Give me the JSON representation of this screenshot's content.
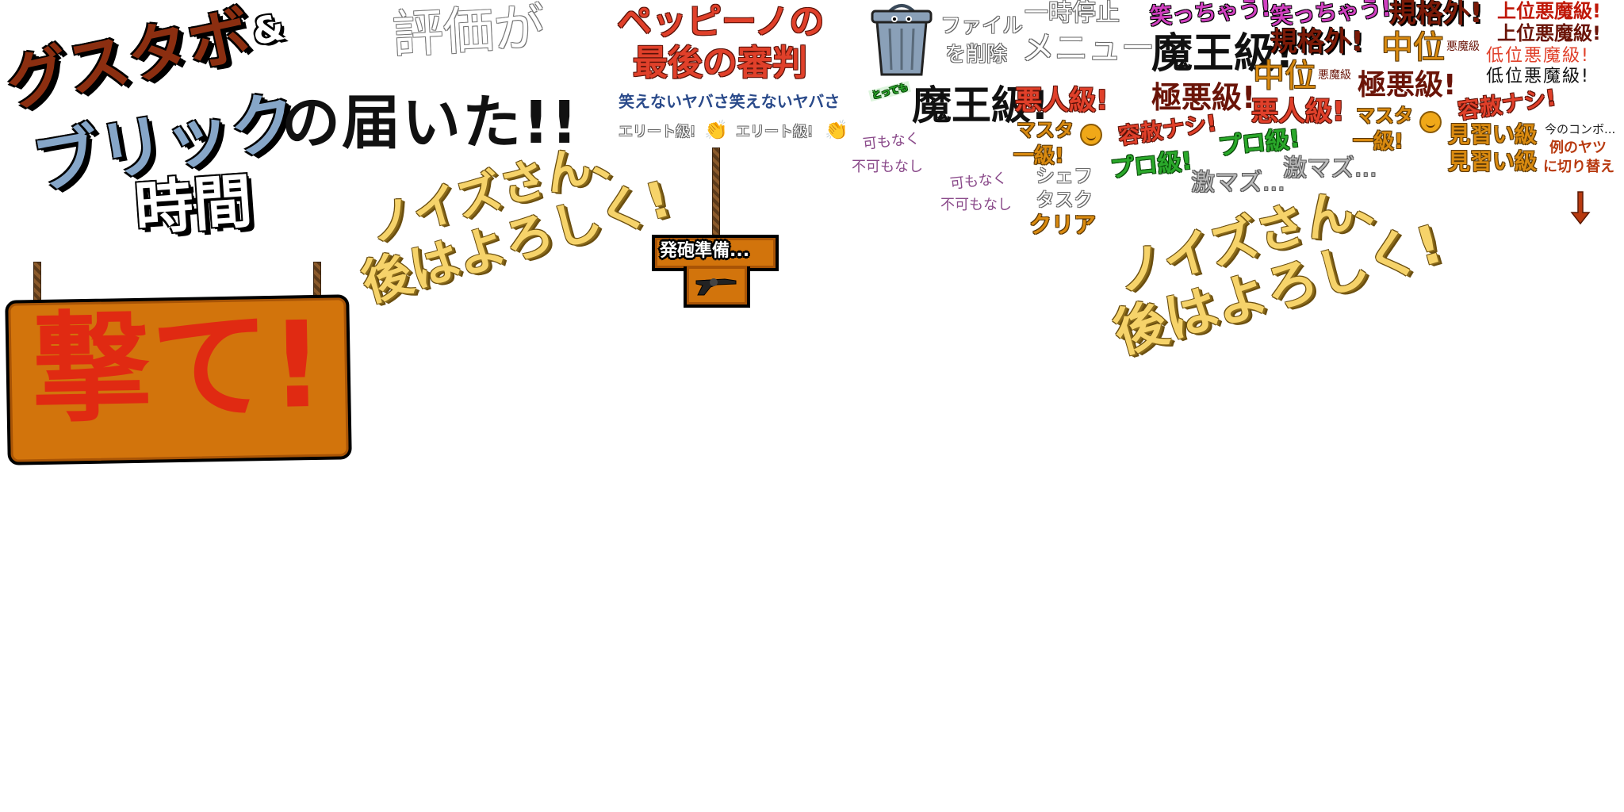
{
  "title": {
    "gusutabo": "グスタボ",
    "amp": "&",
    "brick": "ブリック",
    "time": "時間",
    "delivered": "の届いた!!"
  },
  "hyouka": "評価が",
  "peppino": {
    "line1": "ペッピーノの",
    "line2": "最後の審判"
  },
  "cantlaugh": "笑えないヤバさ笑えないヤバさ",
  "elite": [
    "エリート級!",
    "エリート級!"
  ],
  "fire_sign": {
    "label": "発砲準備...",
    "icon": "revolver-icon"
  },
  "shoot_sign": "撃て!",
  "noise1": {
    "line1": "ノイズさん、",
    "line2": "後はよろしく!"
  },
  "noise2": {
    "line1": "ノイズさん、",
    "line2": "後はよろしく!"
  },
  "trash": {
    "icon": "trash-can-icon",
    "tag": "とっても",
    "label1": "ファイル",
    "label2": "を削除"
  },
  "pause": {
    "line1": "一時停止",
    "line2": "メニュー"
  },
  "ranks": {
    "maou1": "魔王級!",
    "maou2": "魔王級!",
    "akunin": "悪人級!",
    "akunin2": "悪人級!",
    "master1a": "マスタ",
    "master1b": "一級!",
    "master2a": "マスタ",
    "master2b": "一級!",
    "kabunaku1a": "可もなく",
    "kabunaku1b": "不可もなし",
    "kabunaku2a": "可もなく",
    "kabunaku2b": "不可もなし",
    "chef1": "シェフ",
    "chef2": "タスク",
    "chef3": "クリア",
    "yousha1": "容赦ナシ!",
    "yousha2": "容赦ナシ!",
    "pro1": "プロ級!",
    "pro2": "プロ級!",
    "gekimazu1": "激マズ...",
    "gekimazu2": "激マズ...",
    "gokuaku1": "極悪級!",
    "gokuaku2": "極悪級!",
    "warau1": "笑っちゃう!",
    "warau2": "笑っちゃう!",
    "kikaku1": "規格外!",
    "kikaku2": "規格外!",
    "chuui1": "中位",
    "chuui1s": "悪魔級",
    "chuui2": "中位",
    "chuui2s": "悪魔級",
    "joui1": "上位悪魔級!",
    "joui2": "上位悪魔級!",
    "teii1": "低位悪魔級!",
    "teii2": "低位悪魔級!",
    "minarai1": "見習い級",
    "minarai2": "見習い級",
    "combo1": "今のコンボ...",
    "combo2": "例のヤツ",
    "combo3": "に切り替え"
  },
  "colors": {
    "wood": "#d2740c",
    "red": "#e02a12",
    "yellow": "#f6d36a",
    "blue": "#86a6c8",
    "brown": "#8b2e10"
  }
}
